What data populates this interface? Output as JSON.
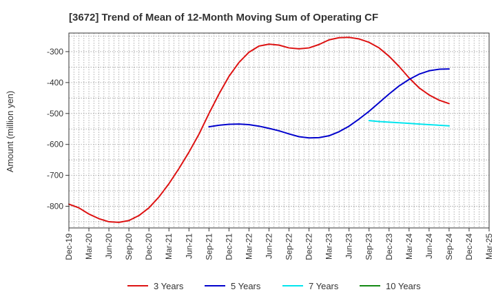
{
  "chart_data": {
    "type": "line",
    "title": "[3672]  Trend of Mean of 12-Month Moving Sum of Operating CF",
    "xlabel": "",
    "ylabel": "Amount (million yen)",
    "ylim": [
      -870,
      -240
    ],
    "yticks": [
      -300,
      -400,
      -500,
      -600,
      -700,
      -800
    ],
    "ytick_labels": [
      "-300",
      "-400",
      "-500",
      "-600",
      "-700",
      "-800"
    ],
    "x_categories": [
      "Dec-19",
      "Mar-20",
      "Jun-20",
      "Sep-20",
      "Dec-20",
      "Mar-21",
      "Jun-21",
      "Sep-21",
      "Dec-21",
      "Mar-22",
      "Jun-22",
      "Sep-22",
      "Dec-22",
      "Mar-23",
      "Jun-23",
      "Sep-23",
      "Dec-23",
      "Mar-24",
      "Jun-24",
      "Sep-24",
      "Dec-24",
      "Mar-25"
    ],
    "grid": true,
    "legend_position": "bottom",
    "series": [
      {
        "name": "3 Years",
        "color": "#dd1111",
        "points": [
          [
            0,
            -793
          ],
          [
            0.5,
            -805
          ],
          [
            1,
            -825
          ],
          [
            1.5,
            -840
          ],
          [
            2,
            -850
          ],
          [
            2.5,
            -852
          ],
          [
            3,
            -846
          ],
          [
            3.5,
            -830
          ],
          [
            4,
            -805
          ],
          [
            4.5,
            -770
          ],
          [
            5,
            -727
          ],
          [
            5.5,
            -678
          ],
          [
            6,
            -625
          ],
          [
            6.5,
            -567
          ],
          [
            7,
            -500
          ],
          [
            7.5,
            -437
          ],
          [
            8,
            -380
          ],
          [
            8.5,
            -335
          ],
          [
            9,
            -302
          ],
          [
            9.5,
            -282
          ],
          [
            10,
            -276
          ],
          [
            10.5,
            -279
          ],
          [
            11,
            -288
          ],
          [
            11.5,
            -291
          ],
          [
            12,
            -288
          ],
          [
            12.5,
            -277
          ],
          [
            13,
            -262
          ],
          [
            13.5,
            -255
          ],
          [
            14,
            -254
          ],
          [
            14.5,
            -259
          ],
          [
            15,
            -270
          ],
          [
            15.5,
            -288
          ],
          [
            16,
            -315
          ],
          [
            16.5,
            -348
          ],
          [
            17,
            -385
          ],
          [
            17.5,
            -417
          ],
          [
            18,
            -440
          ],
          [
            18.5,
            -457
          ],
          [
            19,
            -468
          ]
        ]
      },
      {
        "name": "5 Years",
        "color": "#0000cc",
        "points": [
          [
            7,
            -543
          ],
          [
            7.5,
            -538
          ],
          [
            8,
            -535
          ],
          [
            8.5,
            -534
          ],
          [
            9,
            -536
          ],
          [
            9.5,
            -541
          ],
          [
            10,
            -548
          ],
          [
            10.5,
            -556
          ],
          [
            11,
            -566
          ],
          [
            11.5,
            -575
          ],
          [
            12,
            -579
          ],
          [
            12.5,
            -578
          ],
          [
            13,
            -572
          ],
          [
            13.5,
            -559
          ],
          [
            14,
            -541
          ],
          [
            14.5,
            -518
          ],
          [
            15,
            -493
          ],
          [
            15.5,
            -465
          ],
          [
            16,
            -437
          ],
          [
            16.5,
            -411
          ],
          [
            17,
            -390
          ],
          [
            17.5,
            -373
          ],
          [
            18,
            -362
          ],
          [
            18.5,
            -357
          ],
          [
            19,
            -356
          ]
        ]
      },
      {
        "name": "7 Years",
        "color": "#00e5ee",
        "points": [
          [
            15,
            -523
          ],
          [
            15.5,
            -526
          ],
          [
            16,
            -528
          ],
          [
            16.5,
            -530
          ],
          [
            17,
            -532
          ],
          [
            17.5,
            -534
          ],
          [
            18,
            -536
          ],
          [
            18.5,
            -538
          ],
          [
            19,
            -540
          ]
        ]
      },
      {
        "name": "10 Years",
        "color": "#118811",
        "points": []
      }
    ]
  }
}
